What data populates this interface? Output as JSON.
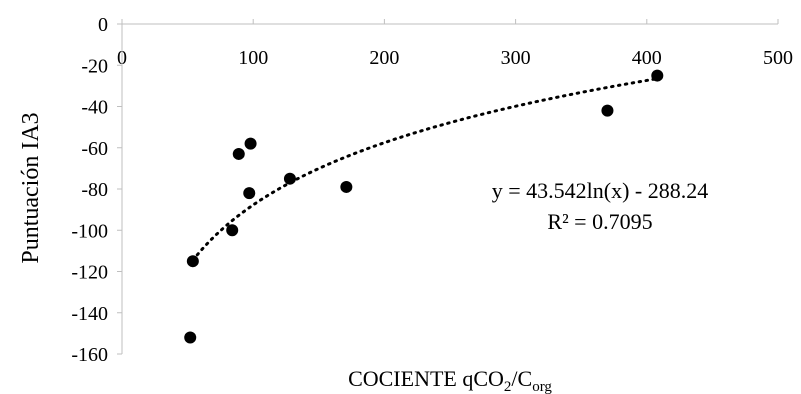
{
  "chart_data": {
    "type": "scatter",
    "xlim": [
      0,
      500
    ],
    "ylim": [
      -160,
      0
    ],
    "x_ticks": [
      0,
      100,
      200,
      300,
      400,
      500
    ],
    "y_ticks": [
      0,
      -20,
      -40,
      -60,
      -80,
      -100,
      -120,
      -140,
      -160
    ],
    "x_axis_position": "top",
    "grid": false,
    "ylabel": "Puntuación IA3",
    "xlabel": {
      "main": "COCIENTE qCO",
      "sub1": "2",
      "mid": "/C",
      "sub2": "org"
    },
    "points": [
      {
        "x": 52,
        "y": -152
      },
      {
        "x": 54,
        "y": -115
      },
      {
        "x": 84,
        "y": -100
      },
      {
        "x": 89,
        "y": -63
      },
      {
        "x": 97,
        "y": -82
      },
      {
        "x": 98,
        "y": -58
      },
      {
        "x": 128,
        "y": -75
      },
      {
        "x": 171,
        "y": -79
      },
      {
        "x": 370,
        "y": -42
      },
      {
        "x": 408,
        "y": -25
      }
    ],
    "trendline": {
      "type": "logarithmic",
      "a": 43.542,
      "b": -288.24,
      "x_range": [
        54,
        408
      ],
      "style": "dotted"
    },
    "annotation": {
      "equation": "y = 43.542ln(x) - 288.24",
      "r2": "R² = 0.7095"
    },
    "colors": {
      "points": "#000000",
      "axes": "#bfbfbf",
      "text": "#000000"
    }
  }
}
